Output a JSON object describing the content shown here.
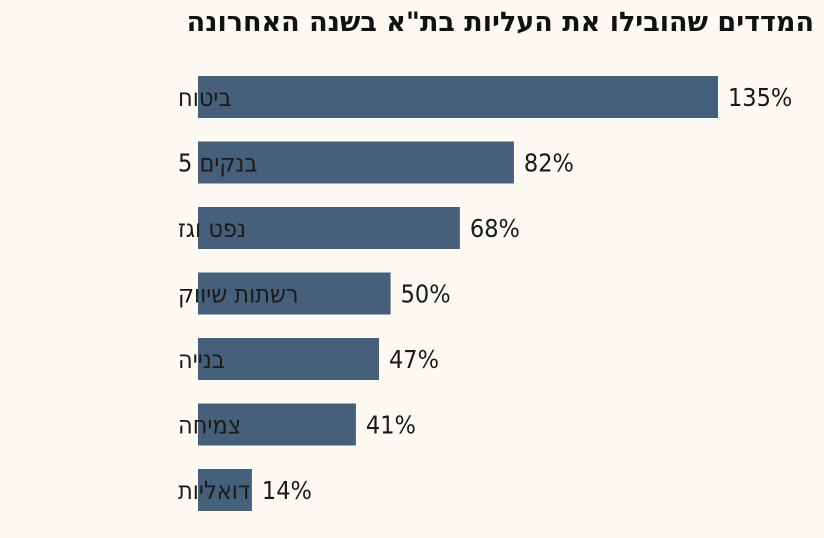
{
  "title": "המדדים שהובילו את העליות בת\"א בשנה האחרונה",
  "chart_data": {
    "type": "bar",
    "orientation": "horizontal",
    "title": "המדדים שהובילו את העליות בת\"א בשנה האחרונה",
    "categories": [
      "ביטוח",
      "בנקים 5",
      "נפט וגז",
      "רשתות שיווק",
      "בנייה",
      "צמיחה",
      "דואליות"
    ],
    "values": [
      135,
      82,
      68,
      50,
      47,
      41,
      14
    ],
    "value_labels": [
      "135%",
      "82%",
      "68%",
      "50%",
      "47%",
      "41%",
      "14%"
    ],
    "unit": "%",
    "xlim": [
      0,
      135
    ],
    "bar_color": "#465f7b",
    "grid": false,
    "legend": "none"
  }
}
